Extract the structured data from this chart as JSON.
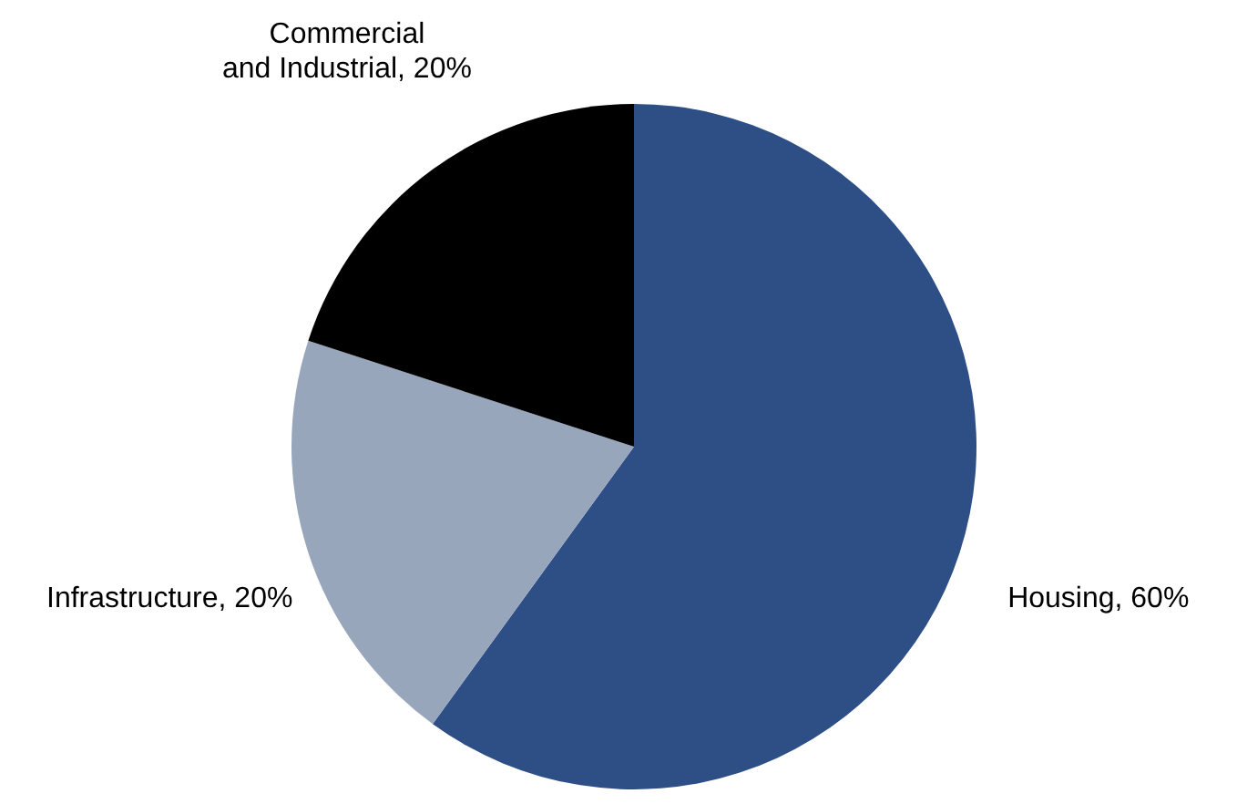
{
  "chart_data": {
    "type": "pie",
    "categories": [
      "Housing",
      "Infrastructure",
      "Commercial and Industrial"
    ],
    "values": [
      60,
      20,
      20
    ],
    "colors": [
      "#2e4e86",
      "#98a6bc",
      "#000000"
    ],
    "value_labels": [
      "60%",
      "20%",
      "20%"
    ],
    "legend": false
  }
}
